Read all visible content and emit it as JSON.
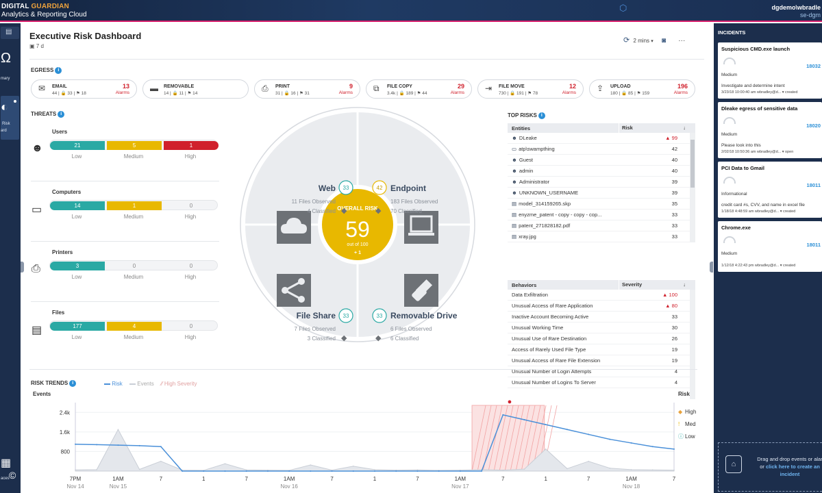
{
  "app": {
    "brand_line1_a": "DIGITAL ",
    "brand_line1_b": "GUARDIAN",
    "brand_line2": "Analytics & Reporting Cloud",
    "user_line1": "dgdemo\\wbradle",
    "user_line2": "se-dgm"
  },
  "nav": {
    "items": [
      {
        "label": "mary"
      },
      {
        "label": "Risk"
      },
      {
        "label": "ard"
      },
      {
        "label": "aces"
      }
    ]
  },
  "dashboard": {
    "title": "Executive Risk Dashboard",
    "range": "7 d",
    "refresh": "2 mins"
  },
  "egress": {
    "title": "EGRESS",
    "alarms_word": "Alarms",
    "items": [
      {
        "name": "EMAIL",
        "stats": "44 | 🔒 33 | ⚑ 18",
        "alarms": "13",
        "icon": "mail-icon"
      },
      {
        "name": "REMOVABLE",
        "stats": "14 | 🔒 11 | ⚑ 14",
        "alarms": "",
        "icon": "usb-icon"
      },
      {
        "name": "PRINT",
        "stats": "31 | 🔒 16 | ⚑ 31",
        "alarms": "9",
        "icon": "printer-icon"
      },
      {
        "name": "FILE COPY",
        "stats": "3.4k | 🔒 189 | ⚑ 44",
        "alarms": "29",
        "icon": "file-copy-icon"
      },
      {
        "name": "FILE MOVE",
        "stats": "730 | 🔒 191 | ⚑ 78",
        "alarms": "12",
        "icon": "file-move-icon"
      },
      {
        "name": "UPLOAD",
        "stats": "180 | 🔒 85 | ⚑ 159",
        "alarms": "196",
        "icon": "upload-icon"
      }
    ]
  },
  "threats": {
    "title": "THREATS",
    "levels": [
      "Low",
      "Medium",
      "High"
    ],
    "groups": [
      {
        "name": "Users",
        "low": "21",
        "medium": "5",
        "high": "1",
        "icon": "user-icon"
      },
      {
        "name": "Computers",
        "low": "14",
        "medium": "1",
        "high": "0",
        "icon": "laptop-icon"
      },
      {
        "name": "Printers",
        "low": "3",
        "medium": "0",
        "high": "0",
        "icon": "printer-icon"
      },
      {
        "name": "Files",
        "low": "177",
        "medium": "4",
        "high": "0",
        "icon": "file-icon"
      }
    ]
  },
  "overall": {
    "label": "OVERALL RISK",
    "score": "59",
    "outof": "out of 100",
    "delta": "+ 1",
    "quadrants": [
      {
        "name": "Web",
        "score": "33",
        "observed": "11 Files Observed",
        "classified": "4 Classified"
      },
      {
        "name": "Endpoint",
        "score": "42",
        "observed": "183 Files Observed",
        "classified": "70 Classified"
      },
      {
        "name": "File Share",
        "score": "33",
        "observed": "7 Files Observed",
        "classified": "3 Classified"
      },
      {
        "name": "Removable Drive",
        "score": "33",
        "observed": "6 Files Observed",
        "classified": "6 Classified"
      }
    ]
  },
  "toprisks": {
    "title": "TOP RISKS",
    "entities_header": "Entities",
    "risk_header": "Risk",
    "entities": [
      {
        "name": "DLeake",
        "value": "99",
        "alert": true,
        "icon": "user-icon"
      },
      {
        "name": "atp\\swampthing",
        "value": "42",
        "alert": false,
        "icon": "laptop-icon"
      },
      {
        "name": "Guest",
        "value": "40",
        "alert": false,
        "icon": "user-icon"
      },
      {
        "name": "admin",
        "value": "40",
        "alert": false,
        "icon": "user-icon"
      },
      {
        "name": "Administrator",
        "value": "39",
        "alert": false,
        "icon": "user-icon"
      },
      {
        "name": "UNKNOWN_USERNAME",
        "value": "39",
        "alert": false,
        "icon": "user-icon"
      },
      {
        "name": "model_314159265.skp",
        "value": "35",
        "alert": false,
        "icon": "file-icon"
      },
      {
        "name": "enyzme_patent - copy - copy - cop...",
        "value": "33",
        "alert": false,
        "icon": "file-icon"
      },
      {
        "name": "patent_271828182.pdf",
        "value": "33",
        "alert": false,
        "icon": "file-icon"
      },
      {
        "name": "xray.jpg",
        "value": "33",
        "alert": false,
        "icon": "file-icon"
      }
    ],
    "behaviors_header": "Behaviors",
    "severity_header": "Severity",
    "behaviors": [
      {
        "name": "Data Exfiltration",
        "value": "100",
        "alert": true
      },
      {
        "name": "Unusual Access of Rare Application",
        "value": "80",
        "alert": true
      },
      {
        "name": "Inactive Account Becoming Active",
        "value": "33",
        "alert": false
      },
      {
        "name": "Unusual Working Time",
        "value": "30",
        "alert": false
      },
      {
        "name": "Unusual Use of Rare Destination",
        "value": "26",
        "alert": false
      },
      {
        "name": "Access of Rarely Used File Type",
        "value": "19",
        "alert": false
      },
      {
        "name": "Unusual Access of Rare File Extension",
        "value": "19",
        "alert": false
      },
      {
        "name": "Unusual Number of Login Attempts",
        "value": "4",
        "alert": false
      },
      {
        "name": "Unusual Number of Logins To Server",
        "value": "4",
        "alert": false
      }
    ]
  },
  "trends": {
    "title": "RISK TRENDS",
    "legend": [
      "Risk",
      "Events",
      "High Severity"
    ],
    "y_left_label": "Events",
    "y_right_label": "Risk",
    "y_left_ticks": [
      "2.4k",
      "1.6k",
      "800"
    ],
    "y_right_ticks": [
      "High",
      "Med",
      "Low"
    ],
    "x_ticks": [
      {
        "t": "7PM",
        "d": "Nov 14"
      },
      {
        "t": "1AM",
        "d": "Nov 15"
      },
      {
        "t": "7",
        "d": ""
      },
      {
        "t": "1",
        "d": ""
      },
      {
        "t": "7",
        "d": ""
      },
      {
        "t": "1AM",
        "d": "Nov 16"
      },
      {
        "t": "7",
        "d": ""
      },
      {
        "t": "1",
        "d": ""
      },
      {
        "t": "7",
        "d": ""
      },
      {
        "t": "1AM",
        "d": "Nov 17"
      },
      {
        "t": "7",
        "d": ""
      },
      {
        "t": "1",
        "d": ""
      },
      {
        "t": "7",
        "d": ""
      },
      {
        "t": "1AM",
        "d": "Nov 18"
      },
      {
        "t": "7",
        "d": ""
      }
    ],
    "colors": {
      "risk": "#4a90d9",
      "events": "#c9ced6",
      "high": "#e05a5a"
    }
  },
  "chart_data": {
    "type": "line",
    "xlabel": "",
    "ylabel": "Events",
    "ylim": [
      0,
      2800
    ],
    "x": [
      "Nov 14 7PM",
      "Nov 14 10PM",
      "Nov 15 1AM",
      "Nov 15 4AM",
      "Nov 15 7AM",
      "Nov 15 10AM",
      "Nov 15 1PM",
      "Nov 15 4PM",
      "Nov 15 7PM",
      "Nov 15 10PM",
      "Nov 16 1AM",
      "Nov 16 4AM",
      "Nov 16 7AM",
      "Nov 16 10AM",
      "Nov 16 1PM",
      "Nov 16 4PM",
      "Nov 16 7PM",
      "Nov 16 10PM",
      "Nov 17 1AM",
      "Nov 17 4AM",
      "Nov 17 7AM",
      "Nov 17 10AM",
      "Nov 17 1PM",
      "Nov 17 4PM",
      "Nov 17 7PM",
      "Nov 17 10PM",
      "Nov 18 1AM",
      "Nov 18 4AM",
      "Nov 18 7AM"
    ],
    "series": [
      {
        "name": "Risk",
        "values": [
          1100,
          1080,
          1060,
          1040,
          1000,
          0,
          0,
          0,
          0,
          0,
          0,
          0,
          0,
          0,
          0,
          0,
          0,
          0,
          0,
          0,
          2300,
          2100,
          1900,
          1700,
          1500,
          1300,
          1150,
          1000,
          900
        ]
      },
      {
        "name": "Events",
        "values": [
          50,
          60,
          1700,
          70,
          400,
          40,
          30,
          300,
          50,
          40,
          30,
          250,
          40,
          200,
          60,
          40,
          50,
          30,
          40,
          60,
          40,
          80,
          900,
          100,
          400,
          120,
          60,
          50,
          40
        ]
      }
    ]
  },
  "incidents": {
    "title": "INCIDENTS",
    "items": [
      {
        "title": "Suspicious CMD.exe launch",
        "num": "18032",
        "severity": "Medium",
        "desc": "Investigate and determine intent",
        "meta": "3/23/18 10:00:40 am    wbradley@d...   ▾   created"
      },
      {
        "title": "Dleake egress of sensitive data",
        "num": "18020",
        "severity": "Medium",
        "desc": "Please look into this",
        "meta": "2/02/18 10:50:36 am    wbradley@d...   ▾   open"
      },
      {
        "title": "PCI Data to Gmail",
        "num": "18011",
        "severity": "Informational",
        "desc": "credit card #s, CVV, and name in excel file",
        "meta": "1/18/18 4:48:59 am    wbradley@d...   ▾   created"
      },
      {
        "title": "Chrome.exe",
        "num": "18011",
        "severity": "Medium",
        "desc": "",
        "meta": "1/12/18 4:22:43 pm    wbradley@d...   ▾   created"
      }
    ],
    "drop_text1": "Drag and drop events or alar",
    "drop_text2": "or ",
    "drop_link": "click here to create an",
    "drop_text3": "incident"
  }
}
